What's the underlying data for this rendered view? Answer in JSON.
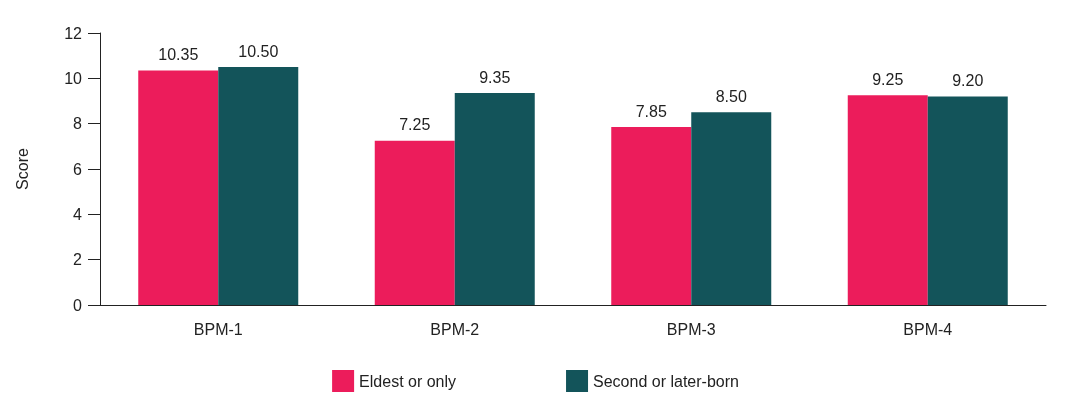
{
  "chart_data": {
    "type": "bar",
    "ylabel": "Score",
    "categories": [
      "BPM-1",
      "BPM-2",
      "BPM-3",
      "BPM-4"
    ],
    "series": [
      {
        "name": "Eldest or only",
        "color": "#ec1c5b",
        "values": [
          10.35,
          7.25,
          7.85,
          9.25
        ],
        "value_labels": [
          "10.35",
          "7.25",
          "7.85",
          "9.25"
        ]
      },
      {
        "name": "Second or later-born",
        "color": "#13545a",
        "values": [
          10.5,
          9.35,
          8.5,
          9.2
        ],
        "value_labels": [
          "10.50",
          "9.35",
          "8.50",
          "9.20"
        ]
      }
    ],
    "ylim": [
      0,
      12
    ],
    "yticks": [
      0,
      2,
      4,
      6,
      8,
      10,
      12
    ],
    "grid": false,
    "legend": "bottom"
  }
}
